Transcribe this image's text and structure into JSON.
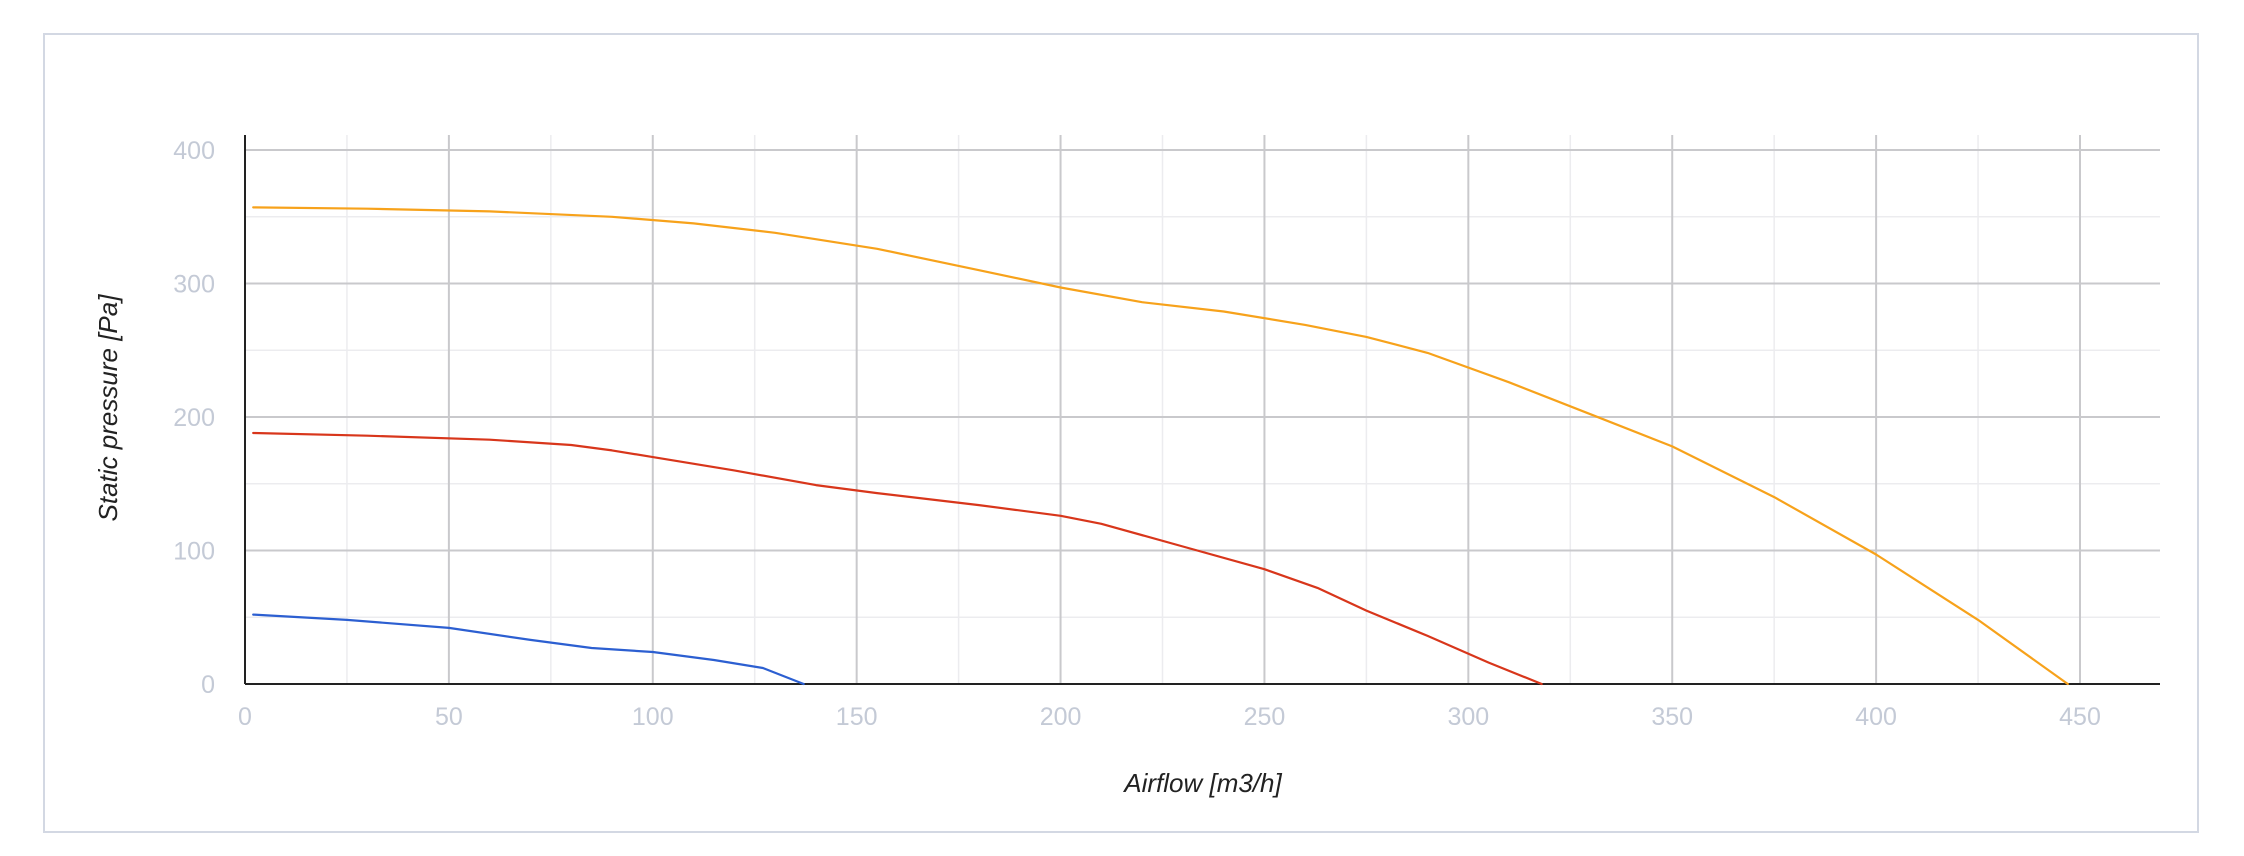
{
  "chart_data": {
    "type": "line",
    "xlabel": "Airflow [m3/h]",
    "ylabel": "Static pressure [Pa]",
    "xlim": [
      0,
      470
    ],
    "ylim": [
      0,
      400
    ],
    "x_ticks": [
      0,
      50,
      100,
      150,
      200,
      250,
      300,
      350,
      400,
      450
    ],
    "y_ticks": [
      0,
      100,
      200,
      300,
      400
    ],
    "grid": true,
    "series": [
      {
        "color": "#f7a21b",
        "x": [
          2,
          30,
          60,
          90,
          110,
          130,
          155,
          180,
          200,
          220,
          240,
          260,
          275,
          290,
          310,
          330,
          350,
          375,
          400,
          425,
          447
        ],
        "y": [
          357,
          356,
          354,
          350,
          345,
          338,
          326,
          310,
          297,
          286,
          279,
          269,
          260,
          248,
          226,
          202,
          178,
          140,
          97,
          48,
          0
        ]
      },
      {
        "color": "#d8361b",
        "x": [
          2,
          30,
          60,
          80,
          90,
          100,
          120,
          140,
          155,
          180,
          200,
          210,
          230,
          250,
          263,
          275,
          290,
          305,
          318
        ],
        "y": [
          188,
          186,
          183,
          179,
          175,
          170,
          160,
          149,
          143,
          134,
          126,
          120,
          103,
          86,
          72,
          55,
          36,
          16,
          0
        ]
      },
      {
        "color": "#2c5fd1",
        "x": [
          2,
          25,
          50,
          70,
          85,
          100,
          115,
          127,
          137
        ],
        "y": [
          52,
          48,
          42,
          33,
          27,
          24,
          18,
          12,
          0
        ]
      }
    ]
  }
}
